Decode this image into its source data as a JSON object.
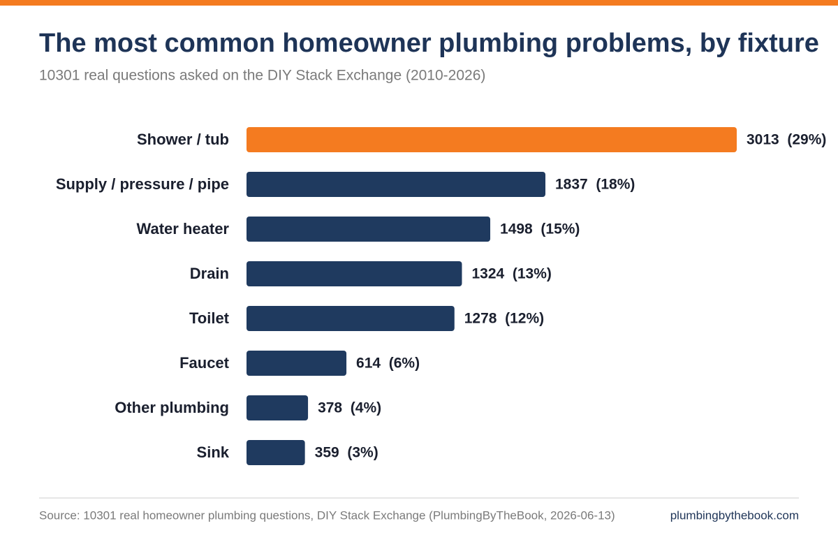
{
  "chart_data": {
    "type": "bar",
    "orientation": "horizontal",
    "title": "The most common homeowner plumbing problems, by fixture",
    "subtitle": "10301 real questions asked on the DIY Stack Exchange (2010-2026)",
    "categories": [
      "Shower / tub",
      "Supply / pressure / pipe",
      "Water heater",
      "Drain",
      "Toilet",
      "Faucet",
      "Other plumbing",
      "Sink"
    ],
    "values": [
      3013,
      1837,
      1498,
      1324,
      1278,
      614,
      378,
      359
    ],
    "value_labels": [
      "3013  (29%)",
      "1837  (18%)",
      "1498  (15%)",
      "1324  (13%)",
      "1278  (12%)",
      "614  (6%)",
      "378  (4%)",
      "359  (3%)"
    ],
    "colors": [
      "#f47b20",
      "#1f3a5f",
      "#1f3a5f",
      "#1f3a5f",
      "#1f3a5f",
      "#1f3a5f",
      "#1f3a5f",
      "#1f3a5f"
    ],
    "xlim": [
      0,
      3013
    ],
    "grid": false,
    "source": "Source: 10301 real homeowner plumbing questions, DIY Stack Exchange (PlumbingByTheBook, 2026-06-13)",
    "website": "plumbingbythebook.com"
  }
}
